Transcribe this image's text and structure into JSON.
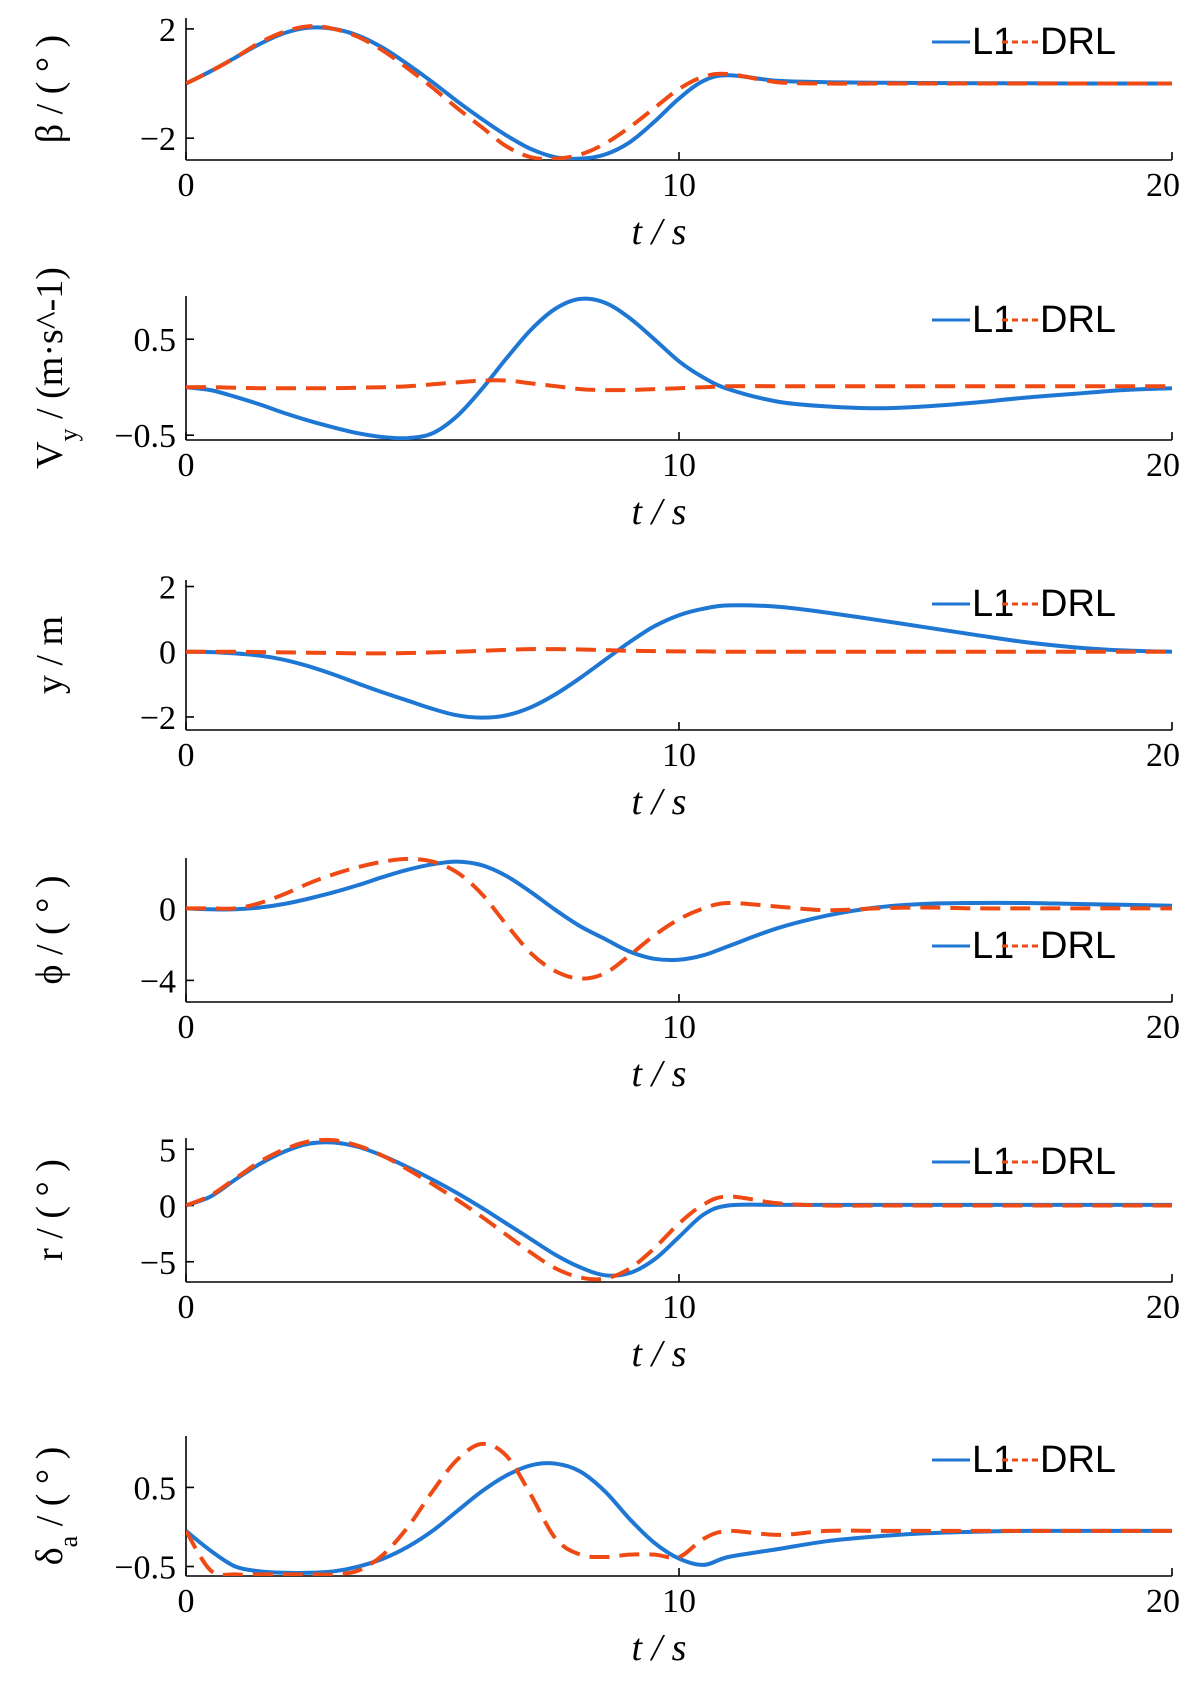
{
  "colors": {
    "L1": "#1f77d4",
    "DRL": "#ef4a14"
  },
  "chart_data": [
    {
      "type": "line",
      "ylabel": "β / ( ° )",
      "xlabel": "t / s",
      "xlim": [
        0,
        20
      ],
      "ylim": [
        -2.8,
        2.4
      ],
      "xticks": [
        "0",
        "10",
        "20"
      ],
      "yticks": [
        {
          "v": 2,
          "label": "2"
        },
        {
          "v": -2,
          "label": "−2"
        }
      ],
      "legend": "top-right",
      "series": [
        {
          "name": "L1",
          "style": "solid",
          "x": [
            0,
            0.5,
            1,
            1.5,
            2,
            2.5,
            3,
            3.5,
            4,
            4.5,
            5,
            5.5,
            6,
            6.5,
            7,
            7.5,
            8,
            8.5,
            9,
            9.5,
            10,
            10.5,
            11,
            12,
            13,
            14,
            15,
            16,
            17,
            18,
            19,
            20
          ],
          "y": [
            0,
            0.45,
            0.95,
            1.45,
            1.85,
            2.05,
            2.0,
            1.75,
            1.3,
            0.7,
            0.05,
            -0.65,
            -1.3,
            -1.9,
            -2.4,
            -2.7,
            -2.75,
            -2.6,
            -2.15,
            -1.4,
            -0.55,
            0.1,
            0.3,
            0.1,
            0.05,
            0.03,
            0.02,
            0.01,
            0.01,
            0,
            0,
            0
          ]
        },
        {
          "name": "DRL",
          "style": "dashed",
          "x": [
            0,
            0.5,
            1,
            1.5,
            2,
            2.5,
            3,
            3.5,
            4,
            4.5,
            5,
            5.5,
            6,
            6.5,
            7,
            7.5,
            8,
            8.5,
            9,
            9.5,
            10,
            10.5,
            11,
            12,
            13,
            14,
            15,
            16,
            17,
            18,
            19,
            20
          ],
          "y": [
            0,
            0.45,
            0.95,
            1.5,
            1.9,
            2.1,
            2.0,
            1.7,
            1.2,
            0.55,
            -0.15,
            -0.9,
            -1.6,
            -2.3,
            -2.7,
            -2.75,
            -2.6,
            -2.2,
            -1.6,
            -0.9,
            -0.2,
            0.25,
            0.35,
            0.05,
            0.0,
            0.0,
            0.0,
            0.0,
            0.0,
            0.0,
            0.0,
            0.0
          ]
        }
      ]
    },
    {
      "type": "line",
      "ylabel": "V_y / (m·s^-1)",
      "xlabel": "t / s",
      "xlim": [
        0,
        20
      ],
      "ylim": [
        -0.55,
        0.95
      ],
      "xticks": [
        "0",
        "10",
        "20"
      ],
      "yticks": [
        {
          "v": 0.5,
          "label": "0.5"
        },
        {
          "v": -0.5,
          "label": "−0.5"
        }
      ],
      "legend": "top-right",
      "series": [
        {
          "name": "L1",
          "style": "solid",
          "x": [
            0,
            0.5,
            1,
            1.5,
            2,
            2.5,
            3,
            3.5,
            4,
            4.5,
            5,
            5.5,
            6,
            6.5,
            7,
            7.5,
            8,
            8.5,
            9,
            9.5,
            10,
            10.5,
            11,
            12,
            13,
            14,
            15,
            16,
            17,
            18,
            19,
            20
          ],
          "y": [
            0,
            -0.03,
            -0.1,
            -0.18,
            -0.27,
            -0.35,
            -0.42,
            -0.48,
            -0.52,
            -0.53,
            -0.48,
            -0.3,
            -0.02,
            0.3,
            0.6,
            0.82,
            0.92,
            0.88,
            0.72,
            0.5,
            0.27,
            0.1,
            -0.02,
            -0.15,
            -0.2,
            -0.22,
            -0.2,
            -0.16,
            -0.11,
            -0.07,
            -0.03,
            -0.01
          ]
        },
        {
          "name": "DRL",
          "style": "dashed",
          "x": [
            0,
            0.5,
            1,
            1.5,
            2,
            2.5,
            3,
            3.5,
            4,
            4.5,
            5,
            5.5,
            6,
            6.5,
            7,
            7.5,
            8,
            8.5,
            9,
            9.5,
            10,
            10.5,
            11,
            12,
            13,
            14,
            15,
            16,
            17,
            18,
            19,
            20
          ],
          "y": [
            0,
            0,
            -0.005,
            -0.01,
            -0.01,
            -0.01,
            -0.01,
            -0.005,
            0,
            0.01,
            0.03,
            0.05,
            0.07,
            0.07,
            0.04,
            0.01,
            -0.02,
            -0.03,
            -0.03,
            -0.02,
            -0.01,
            0,
            0.01,
            0.01,
            0.01,
            0.01,
            0.01,
            0.01,
            0.01,
            0.01,
            0.01,
            0.01
          ]
        }
      ]
    },
    {
      "type": "line",
      "ylabel": "y / m",
      "xlabel": "t / s",
      "xlim": [
        0,
        20
      ],
      "ylim": [
        -2.4,
        2.2
      ],
      "xticks": [
        "0",
        "10",
        "20"
      ],
      "yticks": [
        {
          "v": 2,
          "label": "2"
        },
        {
          "v": 0,
          "label": "0"
        },
        {
          "v": -2,
          "label": "−2"
        }
      ],
      "legend": "top-right",
      "series": [
        {
          "name": "L1",
          "style": "solid",
          "x": [
            0,
            0.5,
            1,
            1.5,
            2,
            2.5,
            3,
            3.5,
            4,
            4.5,
            5,
            5.5,
            6,
            6.5,
            7,
            7.5,
            8,
            8.5,
            9,
            9.5,
            10,
            10.5,
            11,
            12,
            13,
            14,
            15,
            16,
            17,
            18,
            19,
            20
          ],
          "y": [
            0,
            -0.01,
            -0.05,
            -0.12,
            -0.25,
            -0.45,
            -0.7,
            -0.98,
            -1.25,
            -1.5,
            -1.75,
            -1.95,
            -2.02,
            -1.95,
            -1.7,
            -1.3,
            -0.8,
            -0.25,
            0.3,
            0.78,
            1.12,
            1.32,
            1.42,
            1.38,
            1.2,
            0.98,
            0.75,
            0.52,
            0.3,
            0.14,
            0.04,
            0
          ]
        },
        {
          "name": "DRL",
          "style": "dashed",
          "x": [
            0,
            0.5,
            1,
            1.5,
            2,
            2.5,
            3,
            3.5,
            4,
            4.5,
            5,
            5.5,
            6,
            6.5,
            7,
            7.5,
            8,
            8.5,
            9,
            9.5,
            10,
            10.5,
            11,
            12,
            13,
            14,
            15,
            16,
            17,
            18,
            19,
            20
          ],
          "y": [
            0,
            0,
            0,
            -0.01,
            -0.02,
            -0.03,
            -0.04,
            -0.05,
            -0.05,
            -0.04,
            -0.02,
            0,
            0.03,
            0.06,
            0.08,
            0.08,
            0.07,
            0.05,
            0.03,
            0.02,
            0.01,
            0.01,
            0,
            0,
            0,
            0,
            0,
            0,
            0,
            0,
            0,
            0
          ]
        }
      ]
    },
    {
      "type": "line",
      "ylabel": "ϕ / ( ° )",
      "xlabel": "t / s",
      "xlim": [
        0,
        20
      ],
      "ylim": [
        -5.2,
        2.8
      ],
      "xticks": [
        "0",
        "10",
        "20"
      ],
      "yticks": [
        {
          "v": 0,
          "label": "0"
        },
        {
          "v": -4,
          "label": "−4"
        }
      ],
      "legend": "bottom-right",
      "series": [
        {
          "name": "L1",
          "style": "solid",
          "x": [
            0,
            0.5,
            1,
            1.5,
            2,
            2.5,
            3,
            3.5,
            4,
            4.5,
            5,
            5.5,
            6,
            6.5,
            7,
            7.5,
            8,
            8.5,
            9,
            9.5,
            10,
            10.5,
            11,
            12,
            13,
            14,
            15,
            16,
            17,
            18,
            19,
            20
          ],
          "y": [
            0,
            -0.05,
            -0.05,
            0.05,
            0.25,
            0.55,
            0.9,
            1.3,
            1.75,
            2.15,
            2.45,
            2.6,
            2.4,
            1.8,
            0.9,
            -0.1,
            -1.0,
            -1.7,
            -2.4,
            -2.8,
            -2.85,
            -2.6,
            -2.1,
            -1.1,
            -0.4,
            0.05,
            0.25,
            0.3,
            0.3,
            0.25,
            0.2,
            0.15
          ]
        },
        {
          "name": "DRL",
          "style": "dashed",
          "x": [
            0,
            0.5,
            1,
            1.5,
            2,
            2.5,
            3,
            3.5,
            4,
            4.5,
            5,
            5.5,
            6,
            6.5,
            7,
            7.5,
            8,
            8.5,
            9,
            9.5,
            10,
            10.5,
            11,
            12,
            13,
            14,
            15,
            16,
            17,
            18,
            19,
            20
          ],
          "y": [
            0,
            0,
            0,
            0.3,
            0.8,
            1.4,
            1.9,
            2.3,
            2.6,
            2.75,
            2.6,
            2.0,
            0.8,
            -0.9,
            -2.5,
            -3.5,
            -3.9,
            -3.6,
            -2.6,
            -1.5,
            -0.6,
            0,
            0.3,
            0.1,
            -0.1,
            0,
            0.05,
            0,
            0,
            0,
            0,
            0
          ]
        }
      ]
    },
    {
      "type": "line",
      "ylabel": "r / ( ° )",
      "xlabel": "t / s",
      "xlim": [
        0,
        20
      ],
      "ylim": [
        -6.8,
        6.0
      ],
      "xticks": [
        "0",
        "10",
        "20"
      ],
      "yticks": [
        {
          "v": 5,
          "label": "5"
        },
        {
          "v": 0,
          "label": "0"
        },
        {
          "v": -5,
          "label": "−5"
        }
      ],
      "legend": "top-right",
      "series": [
        {
          "name": "L1",
          "style": "solid",
          "x": [
            0,
            0.5,
            1,
            1.5,
            2,
            2.5,
            3,
            3.5,
            4,
            4.5,
            5,
            5.5,
            6,
            6.5,
            7,
            7.5,
            8,
            8.5,
            9,
            9.5,
            10,
            10.5,
            11,
            12,
            13,
            14,
            15,
            16,
            17,
            18,
            19,
            20
          ],
          "y": [
            0,
            0.8,
            2.3,
            3.7,
            4.8,
            5.5,
            5.6,
            5.2,
            4.4,
            3.4,
            2.3,
            1.1,
            -0.2,
            -1.6,
            -3.0,
            -4.4,
            -5.5,
            -6.2,
            -6.0,
            -4.8,
            -2.8,
            -0.8,
            0,
            0.05,
            0.05,
            0.05,
            0.05,
            0.05,
            0.05,
            0.05,
            0.05,
            0.05
          ]
        },
        {
          "name": "DRL",
          "style": "dashed",
          "x": [
            0,
            0.5,
            1,
            1.5,
            2,
            2.5,
            3,
            3.5,
            4,
            4.5,
            5,
            5.5,
            6,
            6.5,
            7,
            7.5,
            8,
            8.5,
            9,
            9.5,
            10,
            10.5,
            11,
            12,
            13,
            14,
            15,
            16,
            17,
            18,
            19,
            20
          ],
          "y": [
            0,
            0.9,
            2.4,
            3.9,
            5.0,
            5.7,
            5.8,
            5.3,
            4.4,
            3.2,
            1.9,
            0.5,
            -1.0,
            -2.6,
            -4.2,
            -5.6,
            -6.4,
            -6.5,
            -5.6,
            -3.8,
            -1.6,
            0.1,
            0.8,
            0.2,
            0,
            0,
            0,
            0,
            0,
            0,
            0,
            0
          ]
        }
      ]
    },
    {
      "type": "line",
      "ylabel": "δ_a / ( ° )",
      "xlabel": "t / s",
      "xlim": [
        0,
        20
      ],
      "ylim": [
        -0.62,
        1.15
      ],
      "xticks": [
        "0",
        "10",
        "20"
      ],
      "yticks": [
        {
          "v": 0.5,
          "label": "0.5"
        },
        {
          "v": -0.5,
          "label": "−0.5"
        }
      ],
      "legend": "top-right",
      "series": [
        {
          "name": "L1",
          "style": "solid",
          "x": [
            0,
            0.5,
            1,
            1.5,
            2,
            2.5,
            3,
            3.5,
            4,
            4.5,
            5,
            5.5,
            6,
            6.5,
            7,
            7.5,
            8,
            8.5,
            9,
            9.5,
            10,
            10.5,
            11,
            12,
            13,
            14,
            15,
            16,
            17,
            18,
            19,
            20
          ],
          "y": [
            -0.05,
            -0.3,
            -0.5,
            -0.56,
            -0.58,
            -0.58,
            -0.56,
            -0.5,
            -0.4,
            -0.25,
            -0.05,
            0.2,
            0.45,
            0.65,
            0.78,
            0.8,
            0.7,
            0.45,
            0.1,
            -0.2,
            -0.4,
            -0.48,
            -0.38,
            -0.28,
            -0.18,
            -0.12,
            -0.08,
            -0.06,
            -0.05,
            -0.05,
            -0.05,
            -0.05
          ]
        },
        {
          "name": "DRL",
          "style": "dashed",
          "x": [
            0,
            0.5,
            1,
            1.5,
            2,
            2.5,
            3,
            3.5,
            4,
            4.5,
            5,
            5.5,
            6,
            6.5,
            7,
            7.5,
            8,
            8.5,
            9,
            9.5,
            10,
            10.5,
            11,
            12,
            13,
            14,
            15,
            16,
            17,
            18,
            19,
            20
          ],
          "y": [
            -0.05,
            -0.55,
            -0.6,
            -0.6,
            -0.6,
            -0.6,
            -0.6,
            -0.55,
            -0.35,
            0.0,
            0.45,
            0.85,
            1.05,
            0.9,
            0.4,
            -0.15,
            -0.35,
            -0.38,
            -0.35,
            -0.35,
            -0.38,
            -0.15,
            -0.05,
            -0.1,
            -0.05,
            -0.05,
            -0.05,
            -0.05,
            -0.05,
            -0.05,
            -0.05,
            -0.05
          ]
        }
      ]
    }
  ]
}
